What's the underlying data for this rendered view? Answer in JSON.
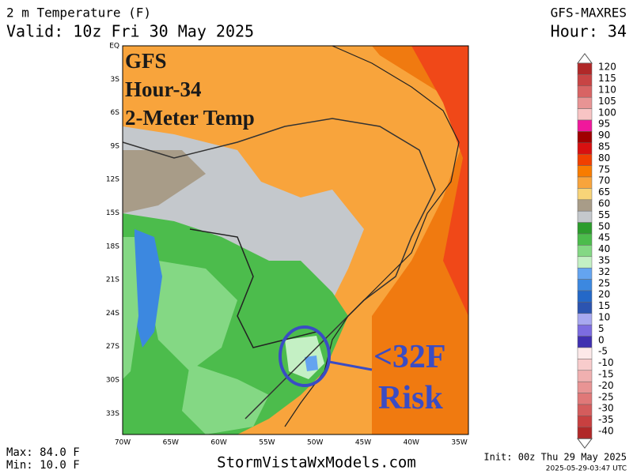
{
  "header": {
    "title": "2 m Temperature (F)",
    "valid": "Valid: 10z Fri 30 May 2025",
    "model": "GFS-MAXRES",
    "hour": "Hour: 34"
  },
  "overlay": {
    "lines": [
      "GFS",
      "Hour-34",
      "2-Meter Temp"
    ],
    "annotation": [
      "<32F",
      "Risk"
    ]
  },
  "map": {
    "lat_labels": [
      "EQ",
      "3S",
      "6S",
      "9S",
      "12S",
      "15S",
      "18S",
      "21S",
      "24S",
      "27S",
      "30S",
      "33S"
    ],
    "lon_labels": [
      "70W",
      "65W",
      "60W",
      "55W",
      "50W",
      "45W",
      "40W",
      "35W"
    ]
  },
  "colorbar": {
    "levels": [
      {
        "label": "120",
        "color": "#b02828"
      },
      {
        "label": "115",
        "color": "#c84444"
      },
      {
        "label": "110",
        "color": "#d86464"
      },
      {
        "label": "105",
        "color": "#e89494"
      },
      {
        "label": "100",
        "color": "#f8c4c4"
      },
      {
        "label": "95",
        "color": "#f0189c"
      },
      {
        "label": "90",
        "color": "#a00000"
      },
      {
        "label": "85",
        "color": "#d81010"
      },
      {
        "label": "80",
        "color": "#f04000"
      },
      {
        "label": "75",
        "color": "#f87c00"
      },
      {
        "label": "70",
        "color": "#f8a43c"
      },
      {
        "label": "65",
        "color": "#f8d478"
      },
      {
        "label": "60",
        "color": "#a89c88"
      },
      {
        "label": "55",
        "color": "#c4c8cc"
      },
      {
        "label": "50",
        "color": "#2c9c2c"
      },
      {
        "label": "45",
        "color": "#4cbc4c"
      },
      {
        "label": "40",
        "color": "#84d884"
      },
      {
        "label": "35",
        "color": "#c4f0c4"
      },
      {
        "label": "32",
        "color": "#64a4f0"
      },
      {
        "label": "25",
        "color": "#3c88e0"
      },
      {
        "label": "20",
        "color": "#2468c8"
      },
      {
        "label": "15",
        "color": "#2c54b0"
      },
      {
        "label": "10",
        "color": "#a8a8f0"
      },
      {
        "label": "5",
        "color": "#7c6ce0"
      },
      {
        "label": "0",
        "color": "#4030b0"
      },
      {
        "label": "-5",
        "color": "#fce8e8"
      },
      {
        "label": "-10",
        "color": "#f8cccc"
      },
      {
        "label": "-15",
        "color": "#f0b0b0"
      },
      {
        "label": "-20",
        "color": "#e89494"
      },
      {
        "label": "-25",
        "color": "#e07878"
      },
      {
        "label": "-30",
        "color": "#d45c5c"
      },
      {
        "label": "-35",
        "color": "#c84040"
      },
      {
        "label": "-40",
        "color": "#b02828"
      }
    ]
  },
  "footer": {
    "max": "Max: 84.0 F",
    "min": "Min: 10.0 F",
    "site": "StormVistaWxModels.com",
    "init": "Init: 00z Thu 29 May 2025",
    "stamp": "2025-05-29-03:47 UTC"
  }
}
